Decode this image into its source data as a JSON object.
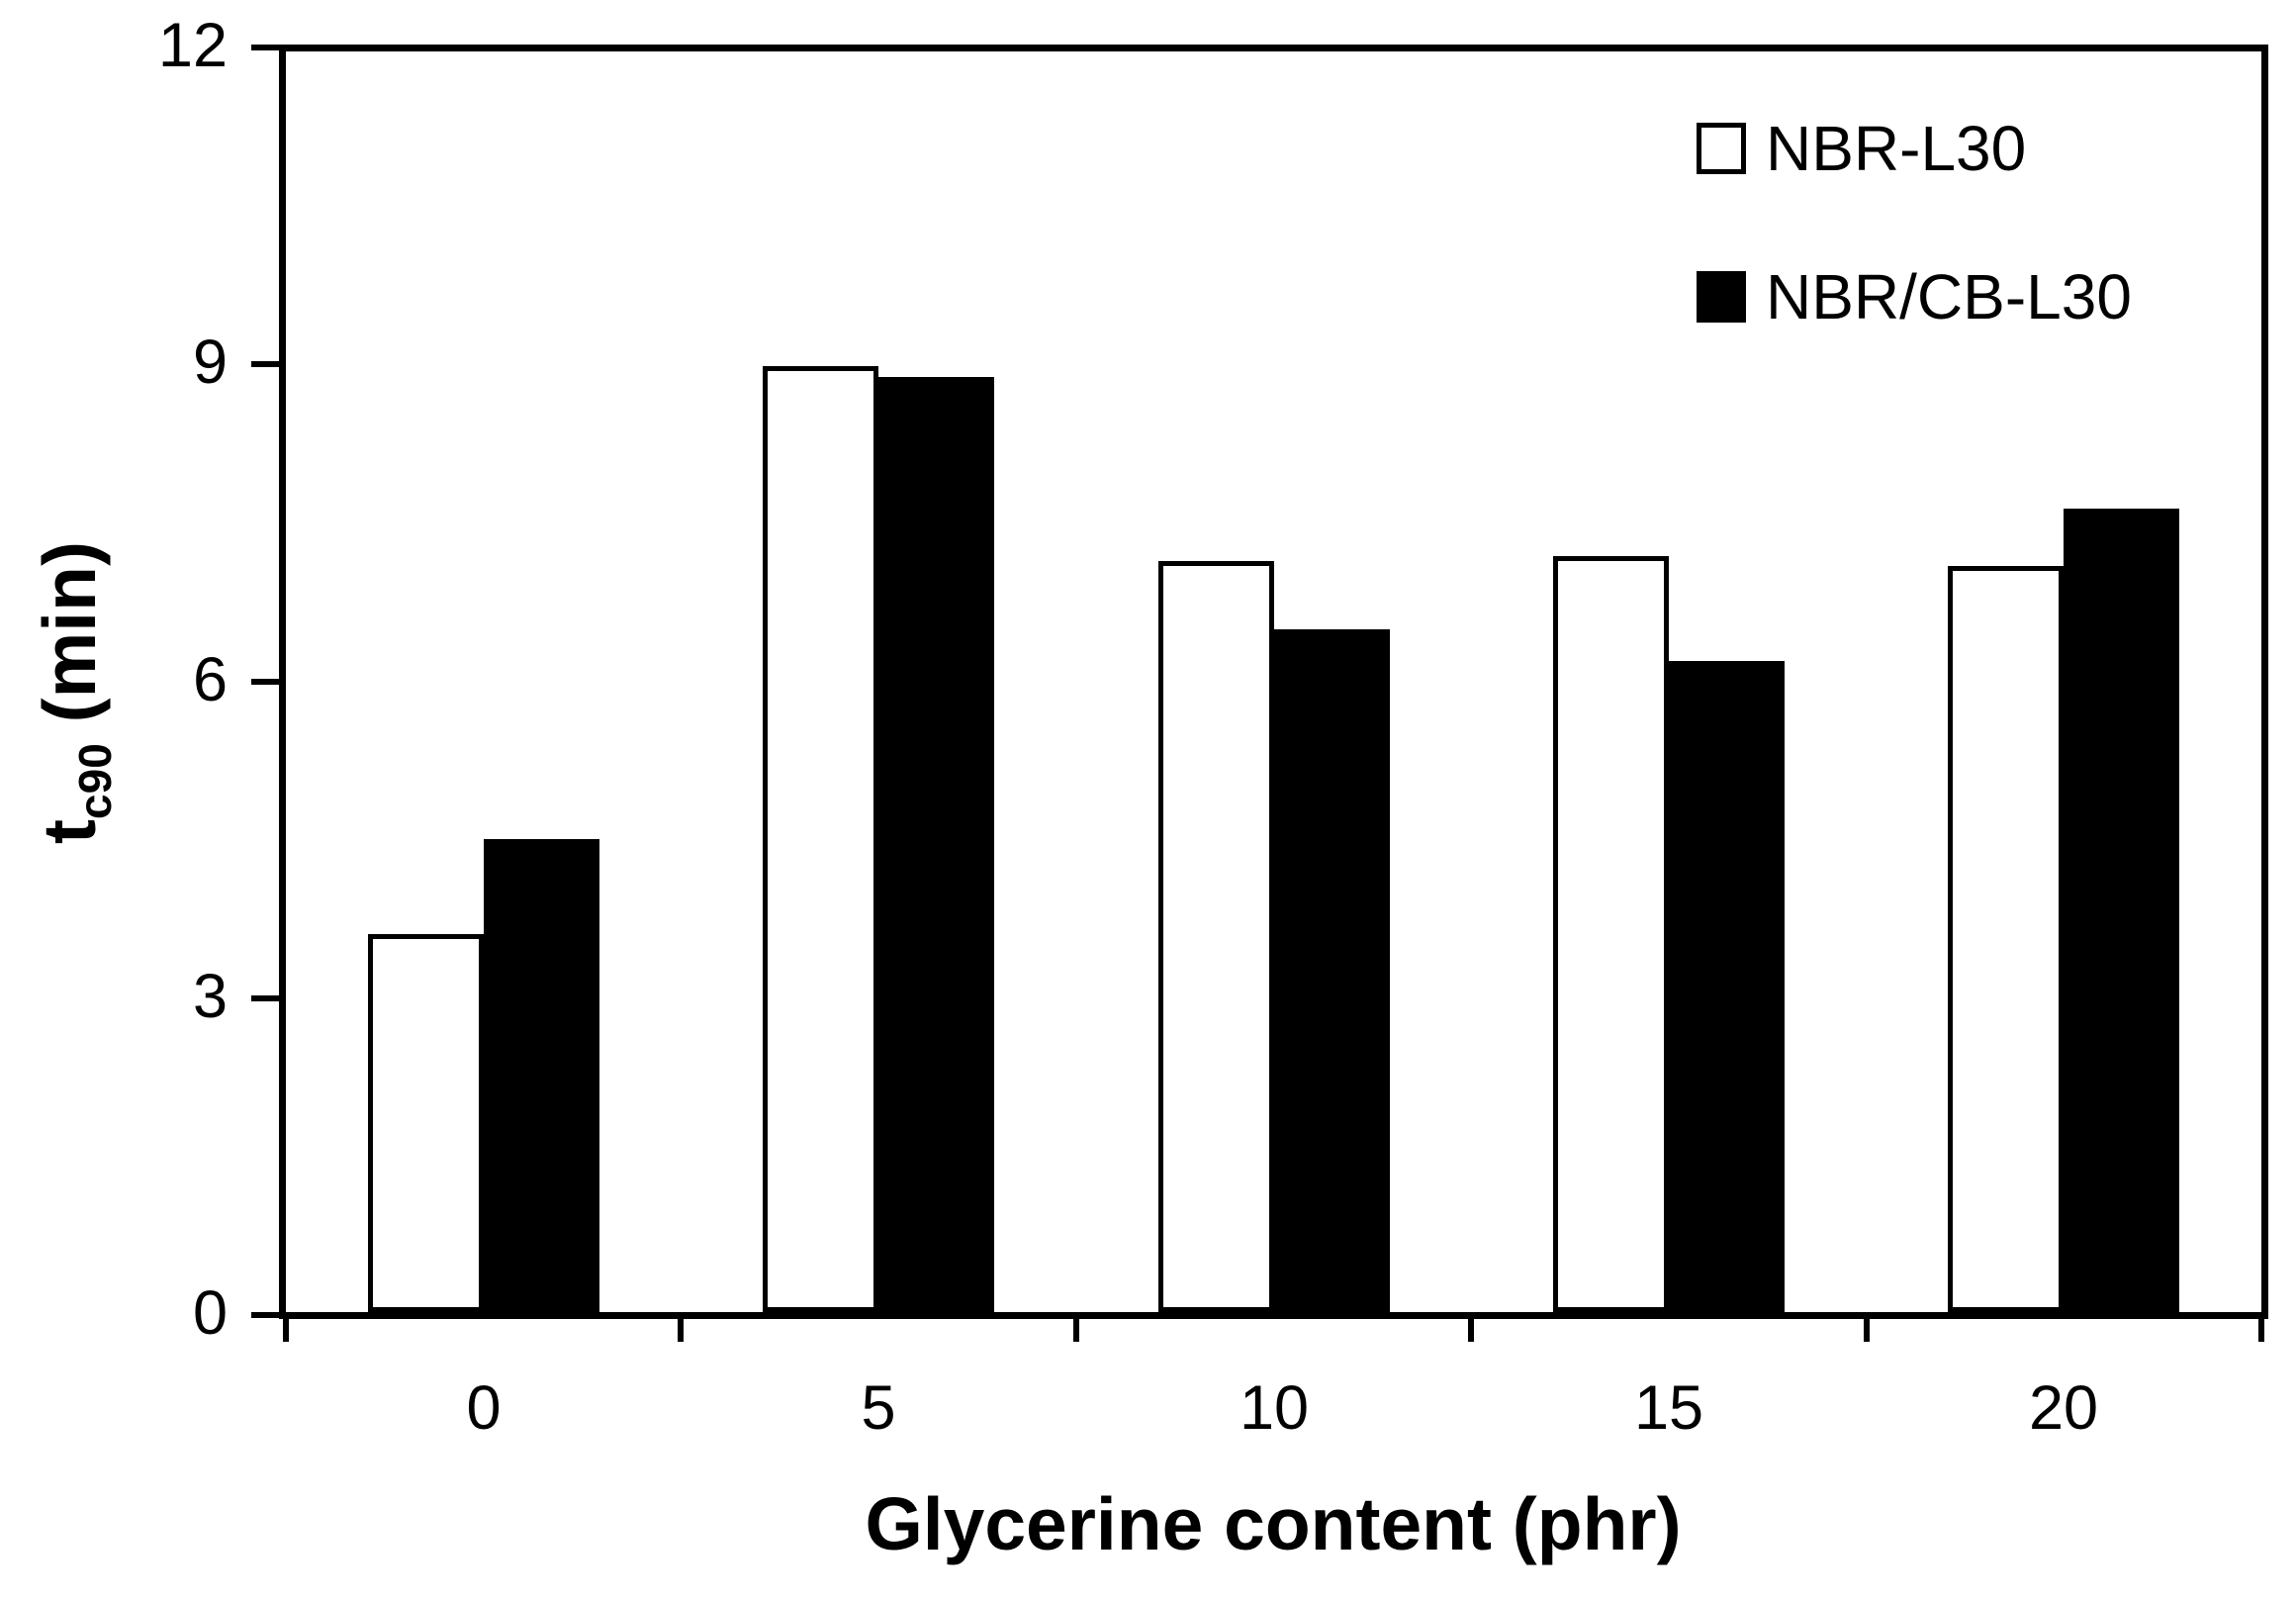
{
  "figure": {
    "background_color": "#ffffff",
    "foreground_color": "#000000"
  },
  "chart_data": {
    "type": "bar",
    "title": "",
    "xlabel": "Glycerine content (phr)",
    "ylabel": "t_c90 (min)",
    "ylabel_base": "t",
    "ylabel_sub": "c90",
    "ylabel_unit": " (min)",
    "categories": [
      "0",
      "5",
      "10",
      "15",
      "20"
    ],
    "series": [
      {
        "name": "NBR-L30",
        "fill": "#ffffff",
        "border": "#000000",
        "values": [
          3.6,
          9.0,
          7.15,
          7.2,
          7.1
        ]
      },
      {
        "name": "NBR/CB-L30",
        "fill": "#000000",
        "border": "#000000",
        "values": [
          4.5,
          8.9,
          6.5,
          6.2,
          7.65
        ]
      }
    ],
    "y_ticks": [
      0,
      3,
      6,
      9,
      12
    ],
    "ylim": [
      0,
      12
    ],
    "grid": false,
    "legend_position": "top-right"
  }
}
